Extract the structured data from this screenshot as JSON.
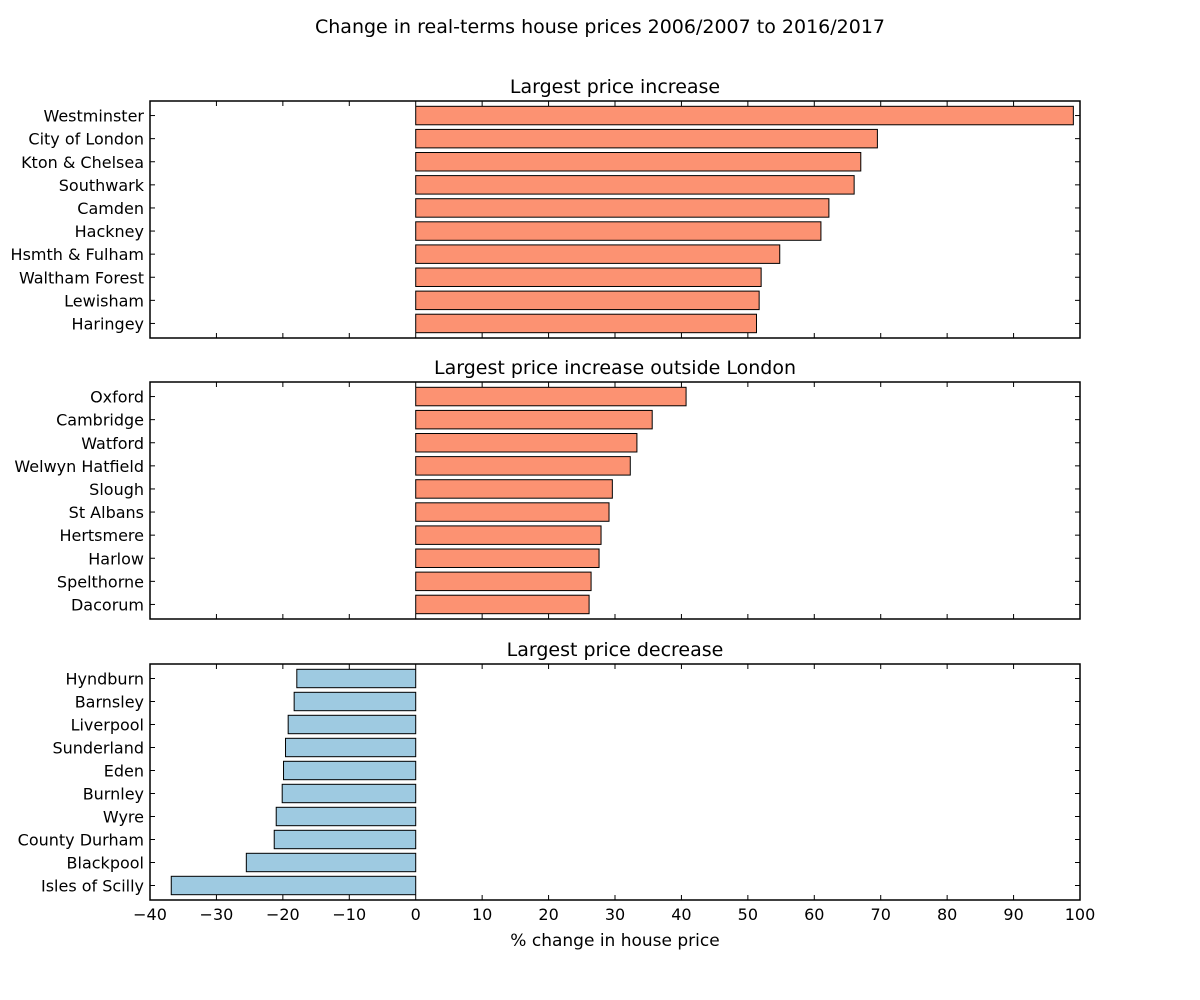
{
  "figure": {
    "title": "Change in real-terms house prices 2006/2007 to 2016/2017"
  },
  "chart_data": [
    {
      "type": "bar",
      "orientation": "horizontal",
      "title": "Largest price increase",
      "color": "#fc9272",
      "categories": [
        "Westminster",
        "City of London",
        "Kton & Chelsea",
        "Southwark",
        "Camden",
        "Hackney",
        "Hsmth & Fulham",
        "Waltham Forest",
        "Lewisham",
        "Haringey"
      ],
      "values": [
        99,
        69.5,
        67,
        66,
        62.2,
        61,
        54.8,
        52,
        51.7,
        51.3
      ],
      "xlim": [
        -40,
        100
      ]
    },
    {
      "type": "bar",
      "orientation": "horizontal",
      "title": "Largest price increase outside London",
      "color": "#fc9272",
      "categories": [
        "Oxford",
        "Cambridge",
        "Watford",
        "Welwyn Hatfield",
        "Slough",
        "St Albans",
        "Hertsmere",
        "Harlow",
        "Spelthorne",
        "Dacorum"
      ],
      "values": [
        40.7,
        35.6,
        33.3,
        32.3,
        29.6,
        29.1,
        27.9,
        27.6,
        26.4,
        26.1
      ],
      "xlim": [
        -40,
        100
      ]
    },
    {
      "type": "bar",
      "orientation": "horizontal",
      "title": "Largest price decrease",
      "color": "#9ecae1",
      "categories": [
        "Hyndburn",
        "Barnsley",
        "Liverpool",
        "Sunderland",
        "Eden",
        "Burnley",
        "Wyre",
        "County Durham",
        "Blackpool",
        "Isles of Scilly"
      ],
      "values": [
        -17.9,
        -18.3,
        -19.2,
        -19.6,
        -19.9,
        -20.1,
        -21,
        -21.3,
        -25.5,
        -36.8
      ],
      "xlim": [
        -40,
        100
      ],
      "xticks": [
        -40,
        -30,
        -20,
        -10,
        0,
        10,
        20,
        30,
        40,
        50,
        60,
        70,
        80,
        90,
        100
      ],
      "xlabel": "% change in house price"
    }
  ]
}
